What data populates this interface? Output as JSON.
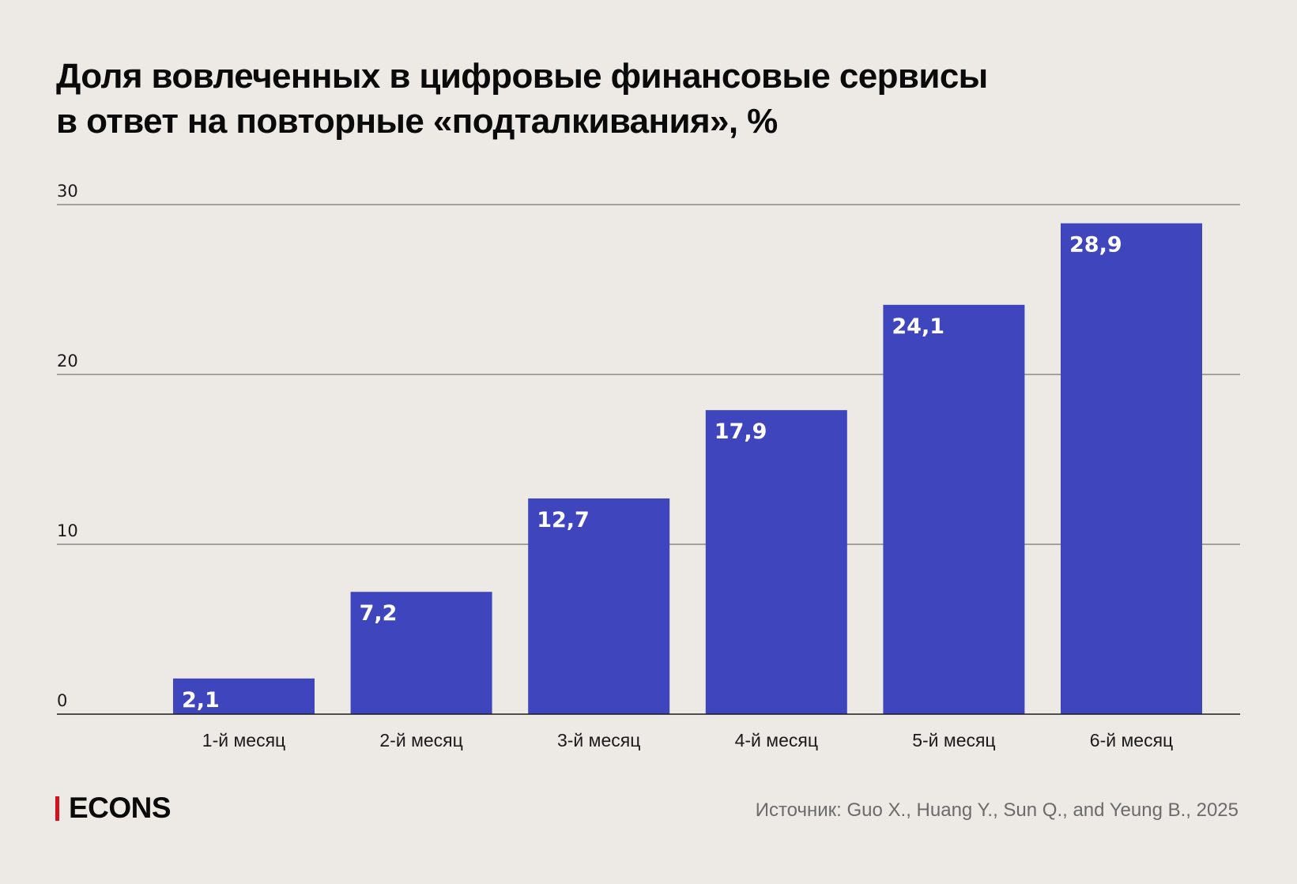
{
  "title_lines": [
    "Доля вовлеченных в цифровые финансовые сервисы",
    "в ответ на повторные «подталкивания», %"
  ],
  "chart_data": {
    "type": "bar",
    "title": "Доля вовлеченных в цифровые финансовые сервисы в ответ на повторные «подталкивания», %",
    "xlabel": "",
    "ylabel": "",
    "categories": [
      "1-й месяц",
      "2-й месяц",
      "3-й месяц",
      "4-й месяц",
      "5-й месяц",
      "6-й месяц"
    ],
    "values": [
      2.1,
      7.2,
      12.7,
      17.9,
      24.1,
      28.9
    ],
    "value_labels": [
      "2,1",
      "7,2",
      "12,7",
      "17,9",
      "24,1",
      "28,9"
    ],
    "ylim": [
      0,
      30
    ],
    "yticks": [
      0,
      10,
      20,
      30
    ],
    "ytick_labels": [
      "0",
      "10",
      "20",
      "30"
    ],
    "grid": true,
    "legend": "none",
    "bar_color": "#3f46bd",
    "grid_color": "#7a7672",
    "axis_color": "#1a1a1a"
  },
  "footer": {
    "logo": "ECONS",
    "logo_color": "#d5111b",
    "source": "Источник: Guo X., Huang Y., Sun Q., and Yeung B., 2025"
  }
}
